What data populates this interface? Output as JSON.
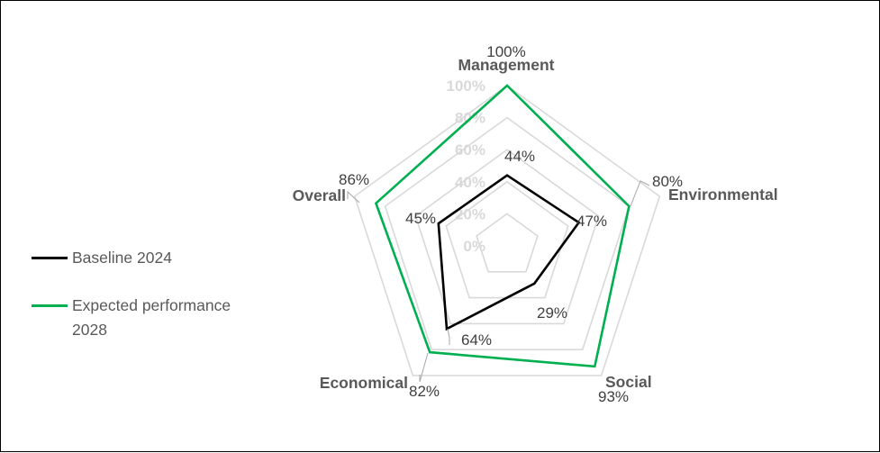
{
  "chart_data": {
    "type": "radar",
    "title": "",
    "categories": [
      "Management",
      "Environmental",
      "Social",
      "Economical",
      "Overall"
    ],
    "radial_ticks": [
      "0%",
      "20%",
      "40%",
      "60%",
      "80%",
      "100%"
    ],
    "rmax": 100,
    "grid": true,
    "legend_position": "left",
    "series": [
      {
        "name": "Baseline 2024",
        "values": [
          44,
          47,
          29,
          64,
          45
        ],
        "labels": [
          "44%",
          "47%",
          "29%",
          "64%",
          "45%"
        ],
        "color": "#000000"
      },
      {
        "name": "Expected performance 2028",
        "values": [
          100,
          80,
          93,
          82,
          86
        ],
        "labels": [
          "100%",
          "80%",
          "93%",
          "82%",
          "86%"
        ],
        "color": "#00b050"
      }
    ]
  },
  "colors": {
    "grid": "#d9d9d9",
    "axis_text": "#595959",
    "data_text": "#404040"
  }
}
